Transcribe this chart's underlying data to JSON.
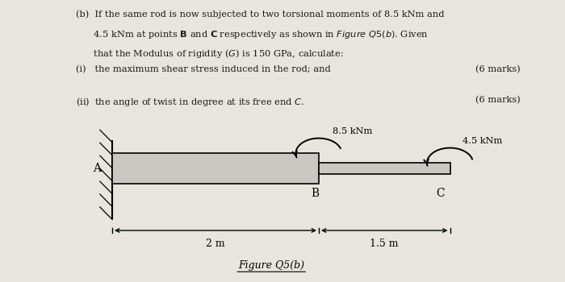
{
  "bg_color": "#e8e5de",
  "text_color": "#1a1a1a",
  "q1_text": "(i)   the maximum shear stress induced in the rod; and",
  "q1_marks": "(6 marks)",
  "q2_text": "(ii)  the angle of twist in degree at its free end C.",
  "q2_marks": "(6 marks)",
  "figure_label": "Figure Q5(b)",
  "moment1_label": "8.5 kNm",
  "moment2_label": "4.5 kNm",
  "dim1_label": "2 m",
  "dim2_label": "1.5 m"
}
